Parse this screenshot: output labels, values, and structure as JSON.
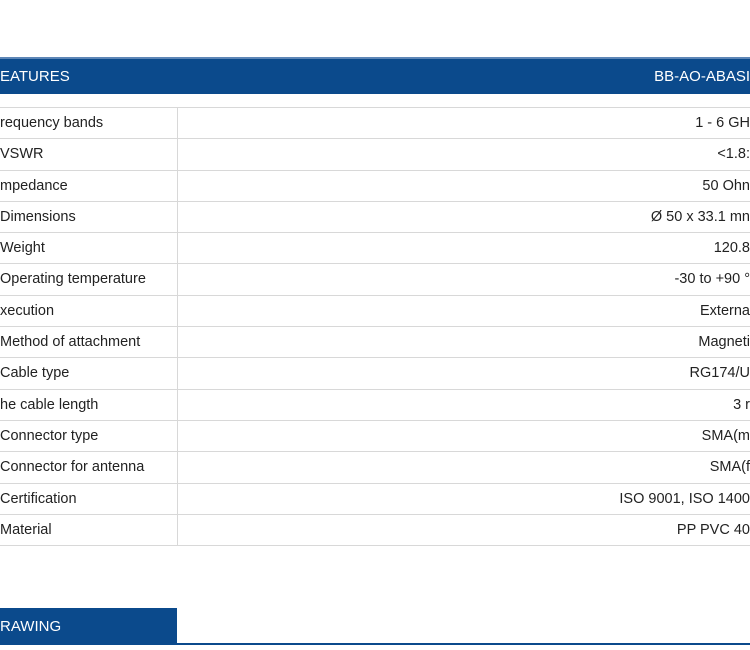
{
  "features_header": {
    "title": "EATURES",
    "model": "BB-AO-ABASI"
  },
  "rows": [
    {
      "label": "requency bands",
      "value": "1 - 6 GH"
    },
    {
      "label": "VSWR",
      "value": "<1.8:"
    },
    {
      "label": "mpedance",
      "value": "50 Ohn"
    },
    {
      "label": "Dimensions",
      "value": "Ø 50 x 33.1 mn"
    },
    {
      "label": "Weight",
      "value": "120.8"
    },
    {
      "label": "Operating temperature",
      "value": "-30 to +90 ° "
    },
    {
      "label": "xecution",
      "value": "Externa"
    },
    {
      "label": "Method of attachment",
      "value": "Magneti"
    },
    {
      "label": "Cable type",
      "value": "RG174/U"
    },
    {
      "label": "he cable length",
      "value": "3 r"
    },
    {
      "label": "Connector type",
      "value": "SMA(m"
    },
    {
      "label": "Connector for antenna",
      "value": "SMA(f"
    },
    {
      "label": "Certification",
      "value": "ISO 9001, ISO 1400"
    },
    {
      "label": "Material",
      "value": "PP PVC 40"
    }
  ],
  "drawing_tab": {
    "label": "RAWING"
  },
  "colors": {
    "header": "#0b4a8c",
    "divider": "#d8d8d8"
  }
}
